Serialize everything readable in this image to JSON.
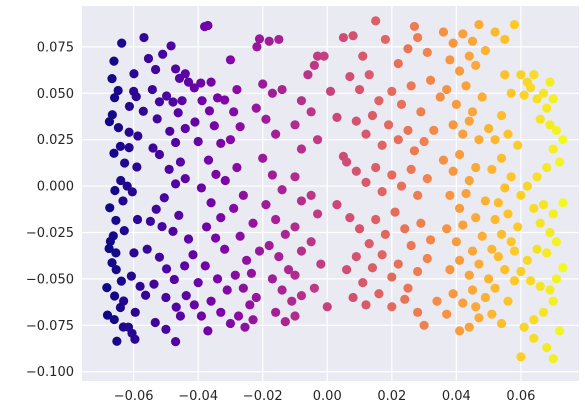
{
  "chart_data": {
    "type": "scatter",
    "title": "",
    "xlabel": "",
    "ylabel": "",
    "xlim": [
      -0.076,
      0.078
    ],
    "ylim": [
      -0.105,
      0.097
    ],
    "grid": true,
    "colormap": "plasma",
    "color_by": "x",
    "background": "#eaeaf2",
    "grid_color": "#ffffff",
    "x_ticks": [
      {
        "value": -0.06,
        "label": "−0.06"
      },
      {
        "value": -0.04,
        "label": "−0.04"
      },
      {
        "value": -0.02,
        "label": "−0.02"
      },
      {
        "value": 0.0,
        "label": "0.00"
      },
      {
        "value": 0.02,
        "label": "0.02"
      },
      {
        "value": 0.04,
        "label": "0.04"
      },
      {
        "value": 0.06,
        "label": "0.06"
      }
    ],
    "y_ticks": [
      {
        "value": 0.075,
        "label": "0.075"
      },
      {
        "value": 0.05,
        "label": "0.050"
      },
      {
        "value": 0.025,
        "label": "0.025"
      },
      {
        "value": 0.0,
        "label": "0.000"
      },
      {
        "value": -0.025,
        "label": "−0.025"
      },
      {
        "value": -0.05,
        "label": "−0.050"
      },
      {
        "value": -0.075,
        "label": "−0.075"
      },
      {
        "value": -0.1,
        "label": "−0.100"
      }
    ],
    "points": [
      [
        -0.0637,
        0.077
      ],
      [
        -0.0661,
        0.0673
      ],
      [
        -0.0667,
        0.0579
      ],
      [
        -0.0659,
        0.0476
      ],
      [
        -0.0648,
        0.0515
      ],
      [
        -0.0666,
        0.0384
      ],
      [
        -0.0675,
        0.0347
      ],
      [
        -0.0647,
        0.0315
      ],
      [
        -0.0614,
        0.029
      ],
      [
        -0.06,
        0.051
      ],
      [
        -0.0641,
        0.0214
      ],
      [
        -0.0614,
        0.0207
      ],
      [
        -0.0661,
        0.0177
      ],
      [
        -0.0628,
        0.0124
      ],
      [
        -0.064,
        0.003
      ],
      [
        -0.0658,
        -0.0024
      ],
      [
        -0.0604,
        -0.0031
      ],
      [
        -0.0633,
        -0.008
      ],
      [
        -0.0674,
        -0.0117
      ],
      [
        -0.0655,
        -0.0185
      ],
      [
        -0.0629,
        -0.024
      ],
      [
        -0.0663,
        -0.0268
      ],
      [
        -0.0672,
        -0.0298
      ],
      [
        -0.0676,
        -0.0336
      ],
      [
        -0.0655,
        -0.036
      ],
      [
        -0.0667,
        -0.0413
      ],
      [
        -0.0654,
        -0.045
      ],
      [
        -0.0607,
        -0.0485
      ],
      [
        -0.0638,
        -0.0512
      ],
      [
        -0.0659,
        -0.0592
      ],
      [
        -0.0683,
        -0.0547
      ],
      [
        -0.0631,
        -0.0619
      ],
      [
        -0.0641,
        -0.0654
      ],
      [
        -0.0681,
        -0.0695
      ],
      [
        -0.066,
        -0.0719
      ],
      [
        -0.0632,
        -0.0759
      ],
      [
        -0.0652,
        -0.0836
      ],
      [
        -0.0605,
        -0.0793
      ],
      [
        -0.0616,
        -0.076
      ],
      [
        -0.0596,
        -0.0825
      ],
      [
        -0.0599,
        0.0605
      ],
      [
        -0.0592,
        0.0482
      ],
      [
        -0.0613,
        0.0429
      ],
      [
        -0.0587,
        0.027
      ],
      [
        -0.059,
        0.0103
      ],
      [
        -0.062,
        0.0
      ],
      [
        -0.0588,
        -0.018
      ],
      [
        -0.0599,
        -0.036
      ],
      [
        -0.058,
        -0.054
      ],
      [
        -0.0595,
        -0.068
      ],
      [
        -0.0568,
        0.08
      ],
      [
        -0.0554,
        0.0687
      ],
      [
        -0.0532,
        0.0628
      ],
      [
        -0.051,
        0.071
      ],
      [
        -0.0484,
        0.0755
      ],
      [
        -0.0542,
        0.052
      ],
      [
        -0.052,
        0.0454
      ],
      [
        -0.057,
        0.0403
      ],
      [
        -0.0527,
        0.0362
      ],
      [
        -0.0498,
        0.0485
      ],
      [
        -0.047,
        0.0631
      ],
      [
        -0.0458,
        0.058
      ],
      [
        -0.044,
        0.0605
      ],
      [
        -0.043,
        0.056
      ],
      [
        -0.0412,
        0.0529
      ],
      [
        -0.0488,
        0.0295
      ],
      [
        -0.054,
        0.0205
      ],
      [
        -0.052,
        0.017
      ],
      [
        -0.049,
        0.009
      ],
      [
        -0.047,
        0.0012
      ],
      [
        -0.0505,
        -0.0063
      ],
      [
        -0.053,
        -0.0125
      ],
      [
        -0.0548,
        -0.019
      ],
      [
        -0.0512,
        -0.0218
      ],
      [
        -0.0478,
        -0.0244
      ],
      [
        -0.0558,
        -0.034
      ],
      [
        -0.052,
        -0.0383
      ],
      [
        -0.0498,
        -0.0446
      ],
      [
        -0.0474,
        -0.0503
      ],
      [
        -0.0537,
        -0.0528
      ],
      [
        -0.0563,
        -0.0588
      ],
      [
        -0.05,
        -0.06
      ],
      [
        -0.0468,
        -0.0652
      ],
      [
        -0.0533,
        -0.0735
      ],
      [
        -0.05,
        -0.0772
      ],
      [
        -0.047,
        -0.0838
      ],
      [
        -0.0455,
        -0.07
      ],
      [
        -0.0437,
        -0.059
      ],
      [
        -0.0442,
        -0.043
      ],
      [
        -0.043,
        -0.0285
      ],
      [
        -0.046,
        -0.0158
      ],
      [
        -0.044,
        0.004
      ],
      [
        -0.0455,
        0.013
      ],
      [
        -0.047,
        0.0235
      ],
      [
        -0.044,
        0.031
      ],
      [
        -0.0462,
        0.0395
      ],
      [
        -0.0478,
        0.0453
      ],
      [
        -0.045,
        0.046
      ],
      [
        -0.041,
        0.0345
      ],
      [
        -0.04,
        0.024
      ],
      [
        -0.038,
        0.0859
      ],
      [
        -0.037,
        0.0865
      ],
      [
        -0.0392,
        0.0555
      ],
      [
        -0.036,
        0.056
      ],
      [
        -0.0388,
        0.046
      ],
      [
        -0.0365,
        0.0405
      ],
      [
        -0.034,
        0.0475
      ],
      [
        -0.0318,
        0.0464
      ],
      [
        -0.035,
        0.0325
      ],
      [
        -0.033,
        0.023
      ],
      [
        -0.0368,
        0.014
      ],
      [
        -0.0345,
        0.0063
      ],
      [
        -0.0316,
        0.003
      ],
      [
        -0.039,
        -0.001
      ],
      [
        -0.036,
        -0.009
      ],
      [
        -0.033,
        -0.017
      ],
      [
        -0.0374,
        -0.022
      ],
      [
        -0.0346,
        -0.028
      ],
      [
        -0.0318,
        -0.034
      ],
      [
        -0.0378,
        -0.043
      ],
      [
        -0.034,
        -0.05
      ],
      [
        -0.031,
        -0.056
      ],
      [
        -0.036,
        -0.062
      ],
      [
        -0.033,
        -0.068
      ],
      [
        -0.03,
        -0.074
      ],
      [
        -0.037,
        -0.078
      ],
      [
        -0.039,
        -0.07
      ],
      [
        -0.0412,
        -0.064
      ],
      [
        -0.04,
        -0.052
      ],
      [
        -0.0416,
        -0.037
      ],
      [
        -0.03,
        0.068
      ],
      [
        -0.028,
        0.052
      ],
      [
        -0.029,
        0.04
      ],
      [
        -0.027,
        0.032
      ],
      [
        -0.03,
        0.025
      ],
      [
        -0.028,
        0.01
      ],
      [
        -0.026,
        -0.005
      ],
      [
        -0.029,
        -0.012
      ],
      [
        -0.027,
        -0.027
      ],
      [
        -0.025,
        -0.04
      ],
      [
        -0.0285,
        -0.048
      ],
      [
        -0.026,
        -0.055
      ],
      [
        -0.024,
        -0.064
      ],
      [
        -0.0275,
        -0.07
      ],
      [
        -0.0255,
        -0.076
      ],
      [
        -0.023,
        -0.072
      ],
      [
        -0.022,
        -0.06
      ],
      [
        -0.0235,
        -0.047
      ],
      [
        -0.021,
        -0.035
      ],
      [
        -0.023,
        -0.02
      ],
      [
        -0.021,
        0.0793
      ],
      [
        -0.0218,
        0.075
      ],
      [
        -0.018,
        0.078
      ],
      [
        -0.015,
        0.079
      ],
      [
        -0.02,
        0.055
      ],
      [
        -0.017,
        0.05
      ],
      [
        -0.014,
        0.052
      ],
      [
        -0.022,
        0.042
      ],
      [
        -0.019,
        0.036
      ],
      [
        -0.016,
        0.028
      ],
      [
        -0.02,
        0.015
      ],
      [
        -0.017,
        0.006
      ],
      [
        -0.014,
        -0.002
      ],
      [
        -0.019,
        -0.01
      ],
      [
        -0.016,
        -0.018
      ],
      [
        -0.013,
        -0.026
      ],
      [
        -0.018,
        -0.032
      ],
      [
        -0.015,
        -0.038
      ],
      [
        -0.012,
        -0.045
      ],
      [
        -0.017,
        -0.05
      ],
      [
        -0.014,
        -0.056
      ],
      [
        -0.011,
        -0.062
      ],
      [
        -0.016,
        -0.068
      ],
      [
        -0.013,
        -0.073
      ],
      [
        -0.01,
        -0.07
      ],
      [
        -0.008,
        -0.059
      ],
      [
        -0.01,
        -0.048
      ],
      [
        -0.008,
        -0.035
      ],
      [
        -0.01,
        -0.022
      ],
      [
        -0.008,
        -0.008
      ],
      [
        -0.01,
        0.005
      ],
      [
        -0.008,
        0.02
      ],
      [
        -0.01,
        0.033
      ],
      [
        -0.008,
        0.046
      ],
      [
        -0.006,
        0.06
      ],
      [
        -0.004,
        0.065
      ],
      [
        -0.003,
        0.07
      ],
      [
        -0.001,
        0.07
      ],
      [
        -0.005,
        0.04
      ],
      [
        -0.003,
        0.025
      ],
      [
        -0.005,
        -0.005
      ],
      [
        -0.003,
        -0.015
      ],
      [
        -0.005,
        -0.03
      ],
      [
        -0.002,
        -0.042
      ],
      [
        -0.004,
        -0.055
      ],
      [
        0.0,
        -0.065
      ],
      [
        0.001,
        0.051
      ],
      [
        0.003,
        0.037
      ],
      [
        0.005,
        0.016
      ],
      [
        0.003,
        -0.01
      ],
      [
        0.005,
        0.08
      ],
      [
        0.008,
        0.081
      ],
      [
        0.011,
        0.07
      ],
      [
        0.015,
        0.089
      ],
      [
        0.018,
        0.079
      ],
      [
        0.022,
        0.066
      ],
      [
        0.025,
        0.074
      ],
      [
        0.028,
        0.08
      ],
      [
        0.027,
        0.086
      ],
      [
        0.031,
        0.072
      ],
      [
        0.007,
        0.059
      ],
      [
        0.01,
        0.052
      ],
      [
        0.013,
        0.06
      ],
      [
        0.016,
        0.046
      ],
      [
        0.02,
        0.051
      ],
      [
        0.023,
        0.044
      ],
      [
        0.026,
        0.054
      ],
      [
        0.029,
        0.04
      ],
      [
        0.032,
        0.057
      ],
      [
        0.035,
        0.048
      ],
      [
        0.009,
        0.035
      ],
      [
        0.012,
        0.028
      ],
      [
        0.014,
        0.038
      ],
      [
        0.017,
        0.022
      ],
      [
        0.019,
        0.033
      ],
      [
        0.022,
        0.025
      ],
      [
        0.025,
        0.03
      ],
      [
        0.027,
        0.019
      ],
      [
        0.03,
        0.024
      ],
      [
        0.033,
        0.03
      ],
      [
        0.006,
        0.013
      ],
      [
        0.009,
        0.008
      ],
      [
        0.012,
        0.002
      ],
      [
        0.015,
        0.01
      ],
      [
        0.017,
        -0.003
      ],
      [
        0.02,
        0.006
      ],
      [
        0.023,
        0.0
      ],
      [
        0.026,
        0.009
      ],
      [
        0.028,
        -0.005
      ],
      [
        0.031,
        0.004
      ],
      [
        0.007,
        -0.017
      ],
      [
        0.01,
        -0.023
      ],
      [
        0.013,
        -0.031
      ],
      [
        0.015,
        -0.018
      ],
      [
        0.018,
        -0.026
      ],
      [
        0.021,
        -0.014
      ],
      [
        0.024,
        -0.023
      ],
      [
        0.026,
        -0.032
      ],
      [
        0.029,
        -0.02
      ],
      [
        0.032,
        -0.029
      ],
      [
        0.006,
        -0.045
      ],
      [
        0.009,
        -0.038
      ],
      [
        0.011,
        -0.052
      ],
      [
        0.014,
        -0.044
      ],
      [
        0.017,
        -0.037
      ],
      [
        0.02,
        -0.049
      ],
      [
        0.022,
        -0.042
      ],
      [
        0.025,
        -0.055
      ],
      [
        0.028,
        -0.046
      ],
      [
        0.031,
        -0.039
      ],
      [
        0.008,
        -0.06
      ],
      [
        0.012,
        -0.064
      ],
      [
        0.016,
        -0.058
      ],
      [
        0.02,
        -0.065
      ],
      [
        0.024,
        -0.061
      ],
      [
        0.028,
        -0.068
      ],
      [
        0.03,
        -0.075
      ],
      [
        0.034,
        -0.062
      ],
      [
        0.037,
        -0.069
      ],
      [
        0.041,
        -0.078
      ],
      [
        0.036,
        0.083
      ],
      [
        0.039,
        0.077
      ],
      [
        0.042,
        0.082
      ],
      [
        0.045,
        0.078
      ],
      [
        0.047,
        0.087
      ],
      [
        0.038,
        0.068
      ],
      [
        0.041,
        0.062
      ],
      [
        0.044,
        0.07
      ],
      [
        0.046,
        0.065
      ],
      [
        0.049,
        0.073
      ],
      [
        0.037,
        0.052
      ],
      [
        0.04,
        0.044
      ],
      [
        0.043,
        0.054
      ],
      [
        0.045,
        0.04
      ],
      [
        0.048,
        0.048
      ],
      [
        0.039,
        0.033
      ],
      [
        0.042,
        0.028
      ],
      [
        0.044,
        0.035
      ],
      [
        0.047,
        0.025
      ],
      [
        0.05,
        0.031
      ],
      [
        0.036,
        0.014
      ],
      [
        0.039,
        0.008
      ],
      [
        0.041,
        0.017
      ],
      [
        0.044,
        0.003
      ],
      [
        0.046,
        0.01
      ],
      [
        0.038,
        -0.005
      ],
      [
        0.041,
        -0.012
      ],
      [
        0.043,
        -0.004
      ],
      [
        0.046,
        -0.017
      ],
      [
        0.049,
        -0.008
      ],
      [
        0.037,
        -0.023
      ],
      [
        0.04,
        -0.03
      ],
      [
        0.042,
        -0.021
      ],
      [
        0.045,
        -0.035
      ],
      [
        0.048,
        -0.027
      ],
      [
        0.038,
        -0.045
      ],
      [
        0.041,
        -0.04
      ],
      [
        0.044,
        -0.048
      ],
      [
        0.047,
        -0.042
      ],
      [
        0.05,
        -0.05
      ],
      [
        0.039,
        -0.058
      ],
      [
        0.042,
        -0.063
      ],
      [
        0.045,
        -0.056
      ],
      [
        0.047,
        -0.071
      ],
      [
        0.044,
        -0.076
      ],
      [
        0.046,
        -0.065
      ],
      [
        0.049,
        -0.06
      ],
      [
        0.051,
        -0.069
      ],
      [
        0.054,
        -0.074
      ],
      [
        0.052,
        -0.055
      ],
      [
        0.052,
        0.083
      ],
      [
        0.055,
        0.079
      ],
      [
        0.058,
        0.087
      ],
      [
        0.06,
        0.06
      ],
      [
        0.062,
        0.056
      ],
      [
        0.064,
        0.06
      ],
      [
        0.063,
        0.053
      ],
      [
        0.061,
        0.049
      ],
      [
        0.065,
        0.047
      ],
      [
        0.067,
        0.05
      ],
      [
        0.069,
        0.056
      ],
      [
        0.07,
        0.047
      ],
      [
        0.068,
        0.042
      ],
      [
        0.066,
        0.036
      ],
      [
        0.069,
        0.033
      ],
      [
        0.071,
        0.03
      ],
      [
        0.073,
        0.025
      ],
      [
        0.07,
        0.02
      ],
      [
        0.072,
        0.013
      ],
      [
        0.068,
        0.01
      ],
      [
        0.065,
        0.005
      ],
      [
        0.062,
        0.0
      ],
      [
        0.06,
        -0.005
      ],
      [
        0.064,
        -0.012
      ],
      [
        0.067,
        -0.01
      ],
      [
        0.07,
        -0.015
      ],
      [
        0.073,
        -0.009
      ],
      [
        0.066,
        -0.02
      ],
      [
        0.069,
        -0.025
      ],
      [
        0.071,
        -0.03
      ],
      [
        0.068,
        -0.036
      ],
      [
        0.065,
        -0.034
      ],
      [
        0.062,
        -0.04
      ],
      [
        0.06,
        -0.046
      ],
      [
        0.063,
        -0.051
      ],
      [
        0.066,
        -0.054
      ],
      [
        0.069,
        -0.056
      ],
      [
        0.071,
        -0.05
      ],
      [
        0.073,
        -0.044
      ],
      [
        0.07,
        -0.062
      ],
      [
        0.067,
        -0.068
      ],
      [
        0.064,
        -0.072
      ],
      [
        0.061,
        -0.076
      ],
      [
        0.064,
        -0.082
      ],
      [
        0.068,
        -0.087
      ],
      [
        0.07,
        -0.093
      ],
      [
        0.072,
        -0.078
      ],
      [
        0.06,
        -0.092
      ],
      [
        0.056,
        -0.062
      ],
      [
        0.058,
        -0.035
      ],
      [
        0.055,
        0.06
      ],
      [
        0.057,
        0.05
      ],
      [
        0.054,
        0.038
      ],
      [
        0.056,
        0.028
      ],
      [
        0.059,
        0.022
      ],
      [
        0.054,
        0.015
      ],
      [
        0.057,
        0.005
      ],
      [
        0.055,
        -0.001
      ],
      [
        0.053,
        -0.009
      ],
      [
        0.056,
        -0.015
      ],
      [
        0.059,
        -0.022
      ],
      [
        0.054,
        -0.026
      ],
      [
        0.057,
        -0.03
      ],
      [
        0.053,
        -0.038
      ],
      [
        0.055,
        -0.045
      ],
      [
        0.058,
        -0.051
      ],
      [
        0.052,
        0.025
      ],
      [
        0.051,
        0.009
      ],
      [
        0.052,
        -0.018
      ],
      [
        0.051,
        -0.034
      ]
    ]
  }
}
